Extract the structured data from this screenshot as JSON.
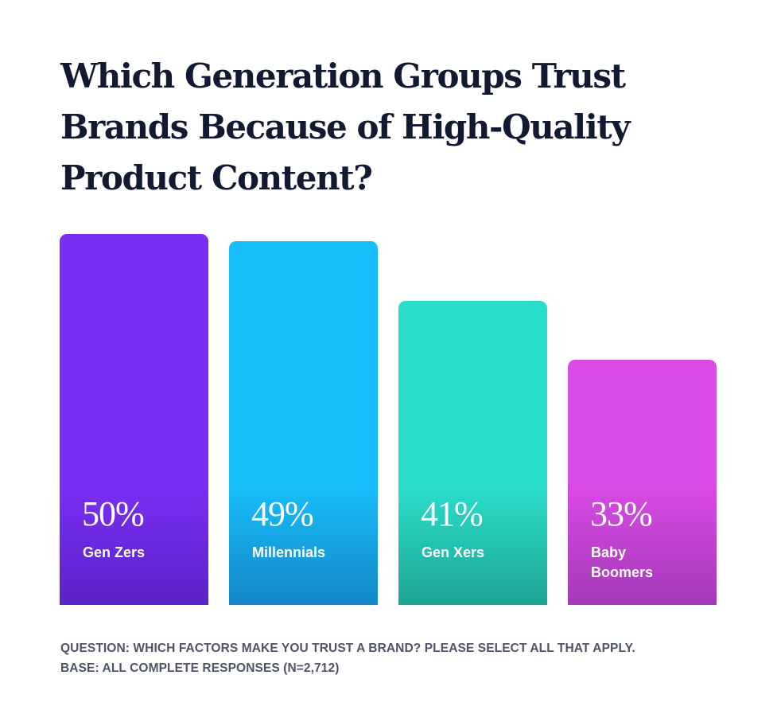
{
  "chart_data": {
    "type": "bar",
    "title": "Which Generation Groups Trust Brands Because of High-Quality Product Content?",
    "title_lines": [
      "Which Generation Groups Trust",
      "Brands Because of High-Quality",
      "Product Content?"
    ],
    "categories": [
      "Gen Zers",
      "Millennials",
      "Gen Xers",
      "Baby Boomers"
    ],
    "category_display": [
      "Gen Zers",
      "Millennials",
      "Gen Xers",
      "Baby\nBoomers"
    ],
    "values": [
      50,
      49,
      41,
      33
    ],
    "value_labels": [
      "50%",
      "49%",
      "41%",
      "33%"
    ],
    "unit": "%",
    "colors": [
      {
        "top": "#7a2ef5",
        "bottom": "#5a23c8"
      },
      {
        "top": "#17befa",
        "bottom": "#1487c9"
      },
      {
        "top": "#2addcb",
        "bottom": "#1fa594"
      },
      {
        "top": "#d94ae6",
        "bottom": "#a43ab8"
      }
    ],
    "xlabel": "",
    "ylabel": "",
    "grid": false,
    "legend": "none"
  },
  "footnote": {
    "question": "QUESTION: WHICH FACTORS MAKE YOU TRUST A BRAND? PLEASE SELECT ALL THAT APPLY.",
    "base": "BASE: ALL COMPLETE RESPONSES (N=2,712)"
  }
}
